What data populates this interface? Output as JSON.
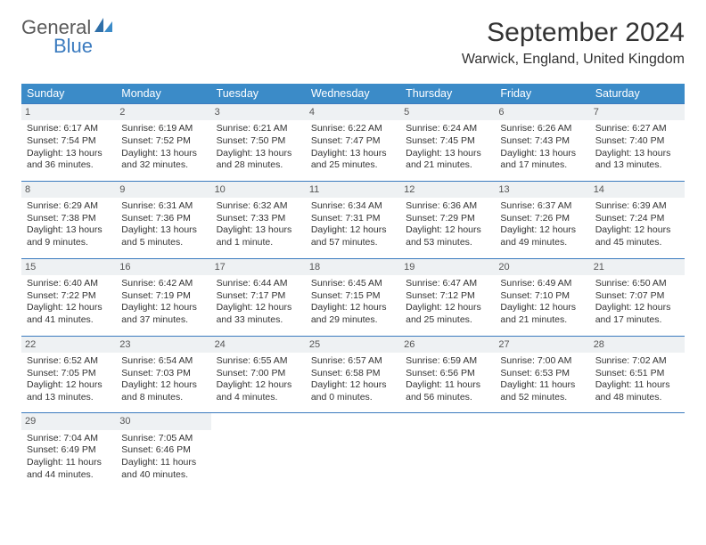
{
  "brand": {
    "line1": "General",
    "line2": "Blue"
  },
  "title": "September 2024",
  "location": "Warwick, England, United Kingdom",
  "colors": {
    "header_bg": "#3b8bc8",
    "header_text": "#ffffff",
    "row_border": "#3b7bbf",
    "daynum_bg": "#eef1f3",
    "text": "#333333",
    "brand_gray": "#5a5a5a",
    "brand_blue": "#3b7bbf",
    "page_bg": "#ffffff"
  },
  "typography": {
    "month_title_fontsize": 30,
    "location_fontsize": 16,
    "header_fontsize": 12.5,
    "cell_fontsize": 10.5,
    "logo_fontsize": 22
  },
  "columns": [
    "Sunday",
    "Monday",
    "Tuesday",
    "Wednesday",
    "Thursday",
    "Friday",
    "Saturday"
  ],
  "weeks": [
    [
      {
        "day": "1",
        "sunrise": "Sunrise: 6:17 AM",
        "sunset": "Sunset: 7:54 PM",
        "day1": "Daylight: 13 hours",
        "day2": "and 36 minutes."
      },
      {
        "day": "2",
        "sunrise": "Sunrise: 6:19 AM",
        "sunset": "Sunset: 7:52 PM",
        "day1": "Daylight: 13 hours",
        "day2": "and 32 minutes."
      },
      {
        "day": "3",
        "sunrise": "Sunrise: 6:21 AM",
        "sunset": "Sunset: 7:50 PM",
        "day1": "Daylight: 13 hours",
        "day2": "and 28 minutes."
      },
      {
        "day": "4",
        "sunrise": "Sunrise: 6:22 AM",
        "sunset": "Sunset: 7:47 PM",
        "day1": "Daylight: 13 hours",
        "day2": "and 25 minutes."
      },
      {
        "day": "5",
        "sunrise": "Sunrise: 6:24 AM",
        "sunset": "Sunset: 7:45 PM",
        "day1": "Daylight: 13 hours",
        "day2": "and 21 minutes."
      },
      {
        "day": "6",
        "sunrise": "Sunrise: 6:26 AM",
        "sunset": "Sunset: 7:43 PM",
        "day1": "Daylight: 13 hours",
        "day2": "and 17 minutes."
      },
      {
        "day": "7",
        "sunrise": "Sunrise: 6:27 AM",
        "sunset": "Sunset: 7:40 PM",
        "day1": "Daylight: 13 hours",
        "day2": "and 13 minutes."
      }
    ],
    [
      {
        "day": "8",
        "sunrise": "Sunrise: 6:29 AM",
        "sunset": "Sunset: 7:38 PM",
        "day1": "Daylight: 13 hours",
        "day2": "and 9 minutes."
      },
      {
        "day": "9",
        "sunrise": "Sunrise: 6:31 AM",
        "sunset": "Sunset: 7:36 PM",
        "day1": "Daylight: 13 hours",
        "day2": "and 5 minutes."
      },
      {
        "day": "10",
        "sunrise": "Sunrise: 6:32 AM",
        "sunset": "Sunset: 7:33 PM",
        "day1": "Daylight: 13 hours",
        "day2": "and 1 minute."
      },
      {
        "day": "11",
        "sunrise": "Sunrise: 6:34 AM",
        "sunset": "Sunset: 7:31 PM",
        "day1": "Daylight: 12 hours",
        "day2": "and 57 minutes."
      },
      {
        "day": "12",
        "sunrise": "Sunrise: 6:36 AM",
        "sunset": "Sunset: 7:29 PM",
        "day1": "Daylight: 12 hours",
        "day2": "and 53 minutes."
      },
      {
        "day": "13",
        "sunrise": "Sunrise: 6:37 AM",
        "sunset": "Sunset: 7:26 PM",
        "day1": "Daylight: 12 hours",
        "day2": "and 49 minutes."
      },
      {
        "day": "14",
        "sunrise": "Sunrise: 6:39 AM",
        "sunset": "Sunset: 7:24 PM",
        "day1": "Daylight: 12 hours",
        "day2": "and 45 minutes."
      }
    ],
    [
      {
        "day": "15",
        "sunrise": "Sunrise: 6:40 AM",
        "sunset": "Sunset: 7:22 PM",
        "day1": "Daylight: 12 hours",
        "day2": "and 41 minutes."
      },
      {
        "day": "16",
        "sunrise": "Sunrise: 6:42 AM",
        "sunset": "Sunset: 7:19 PM",
        "day1": "Daylight: 12 hours",
        "day2": "and 37 minutes."
      },
      {
        "day": "17",
        "sunrise": "Sunrise: 6:44 AM",
        "sunset": "Sunset: 7:17 PM",
        "day1": "Daylight: 12 hours",
        "day2": "and 33 minutes."
      },
      {
        "day": "18",
        "sunrise": "Sunrise: 6:45 AM",
        "sunset": "Sunset: 7:15 PM",
        "day1": "Daylight: 12 hours",
        "day2": "and 29 minutes."
      },
      {
        "day": "19",
        "sunrise": "Sunrise: 6:47 AM",
        "sunset": "Sunset: 7:12 PM",
        "day1": "Daylight: 12 hours",
        "day2": "and 25 minutes."
      },
      {
        "day": "20",
        "sunrise": "Sunrise: 6:49 AM",
        "sunset": "Sunset: 7:10 PM",
        "day1": "Daylight: 12 hours",
        "day2": "and 21 minutes."
      },
      {
        "day": "21",
        "sunrise": "Sunrise: 6:50 AM",
        "sunset": "Sunset: 7:07 PM",
        "day1": "Daylight: 12 hours",
        "day2": "and 17 minutes."
      }
    ],
    [
      {
        "day": "22",
        "sunrise": "Sunrise: 6:52 AM",
        "sunset": "Sunset: 7:05 PM",
        "day1": "Daylight: 12 hours",
        "day2": "and 13 minutes."
      },
      {
        "day": "23",
        "sunrise": "Sunrise: 6:54 AM",
        "sunset": "Sunset: 7:03 PM",
        "day1": "Daylight: 12 hours",
        "day2": "and 8 minutes."
      },
      {
        "day": "24",
        "sunrise": "Sunrise: 6:55 AM",
        "sunset": "Sunset: 7:00 PM",
        "day1": "Daylight: 12 hours",
        "day2": "and 4 minutes."
      },
      {
        "day": "25",
        "sunrise": "Sunrise: 6:57 AM",
        "sunset": "Sunset: 6:58 PM",
        "day1": "Daylight: 12 hours",
        "day2": "and 0 minutes."
      },
      {
        "day": "26",
        "sunrise": "Sunrise: 6:59 AM",
        "sunset": "Sunset: 6:56 PM",
        "day1": "Daylight: 11 hours",
        "day2": "and 56 minutes."
      },
      {
        "day": "27",
        "sunrise": "Sunrise: 7:00 AM",
        "sunset": "Sunset: 6:53 PM",
        "day1": "Daylight: 11 hours",
        "day2": "and 52 minutes."
      },
      {
        "day": "28",
        "sunrise": "Sunrise: 7:02 AM",
        "sunset": "Sunset: 6:51 PM",
        "day1": "Daylight: 11 hours",
        "day2": "and 48 minutes."
      }
    ],
    [
      {
        "day": "29",
        "sunrise": "Sunrise: 7:04 AM",
        "sunset": "Sunset: 6:49 PM",
        "day1": "Daylight: 11 hours",
        "day2": "and 44 minutes."
      },
      {
        "day": "30",
        "sunrise": "Sunrise: 7:05 AM",
        "sunset": "Sunset: 6:46 PM",
        "day1": "Daylight: 11 hours",
        "day2": "and 40 minutes."
      },
      null,
      null,
      null,
      null,
      null
    ]
  ]
}
